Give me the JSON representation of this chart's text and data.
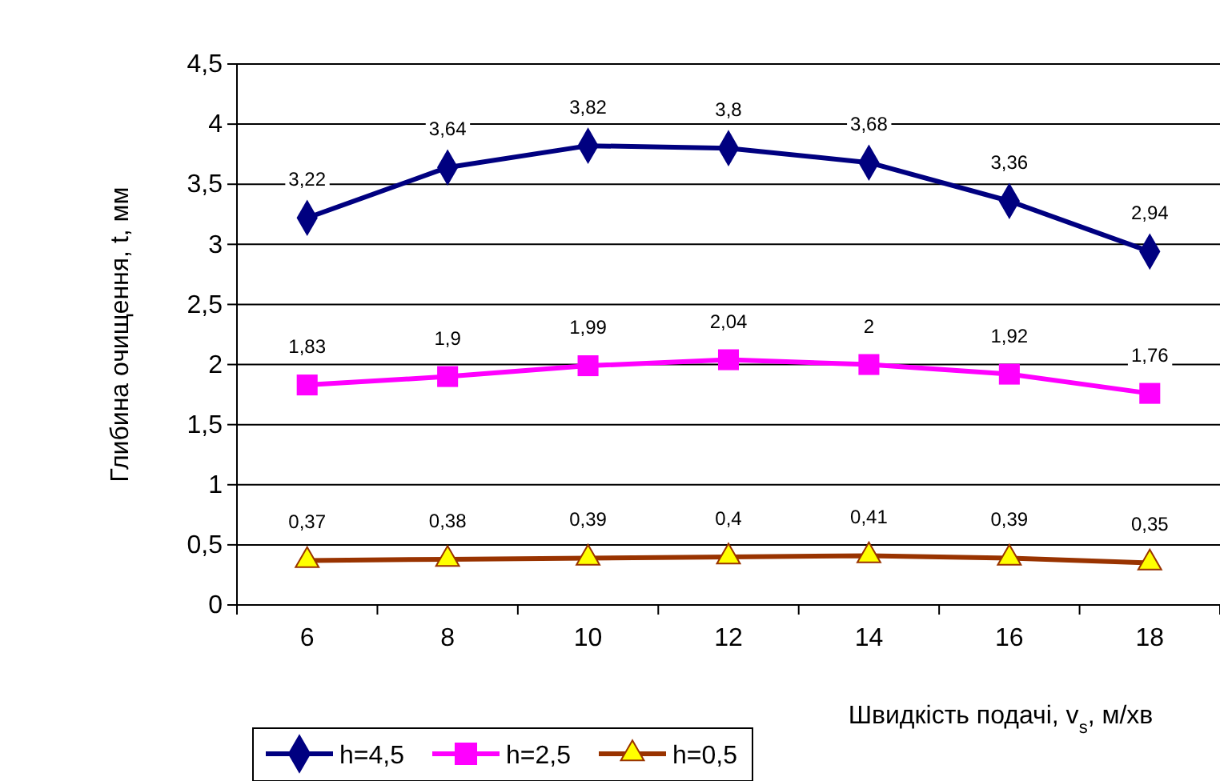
{
  "chart_data": {
    "type": "line",
    "xlabel": "Швидкість подачі, v$_{s}$, м/хв",
    "ylabel": "Глибина очищення, t, мм",
    "categories": [
      "6",
      "8",
      "10",
      "12",
      "14",
      "16",
      "18"
    ],
    "ylim": [
      0,
      4.5
    ],
    "yticks": [
      0,
      {
        "value": 0.5,
        "label": "0,5"
      },
      1,
      {
        "value": 1.5,
        "label": "1,5"
      },
      2,
      {
        "value": 2.5,
        "label": "2,5"
      },
      3,
      {
        "value": 3.5,
        "label": "3,5"
      },
      4,
      {
        "value": 4.5,
        "label": "4,5"
      }
    ],
    "grid": "y",
    "legend": "bottom",
    "line_style": "solid",
    "series": [
      {
        "name": "h=4,5",
        "color": "#000080",
        "marker": "diamond",
        "values": [
          3.22,
          3.64,
          3.82,
          3.8,
          3.68,
          3.36,
          2.94
        ],
        "value_labels": [
          "3,22",
          "3,64",
          "3,82",
          "3,8",
          "3,68",
          "3,36",
          "2,94"
        ]
      },
      {
        "name": "h=2,5",
        "color": "#ff00ff",
        "marker": "square",
        "values": [
          1.83,
          1.9,
          1.99,
          2.04,
          2,
          1.92,
          1.76
        ],
        "value_labels": [
          "1,83",
          "1,9",
          "1,99",
          "2,04",
          "2",
          "1,92",
          "1,76"
        ]
      },
      {
        "name": "h=0,5",
        "color": "#993300",
        "marker": "triangle",
        "values": [
          0.37,
          0.38,
          0.39,
          0.4,
          0.41,
          0.39,
          0.35
        ],
        "value_labels": [
          "0,37",
          "0,38",
          "0,39",
          "0,4",
          "0,41",
          "0,39",
          "0,35"
        ]
      }
    ]
  }
}
